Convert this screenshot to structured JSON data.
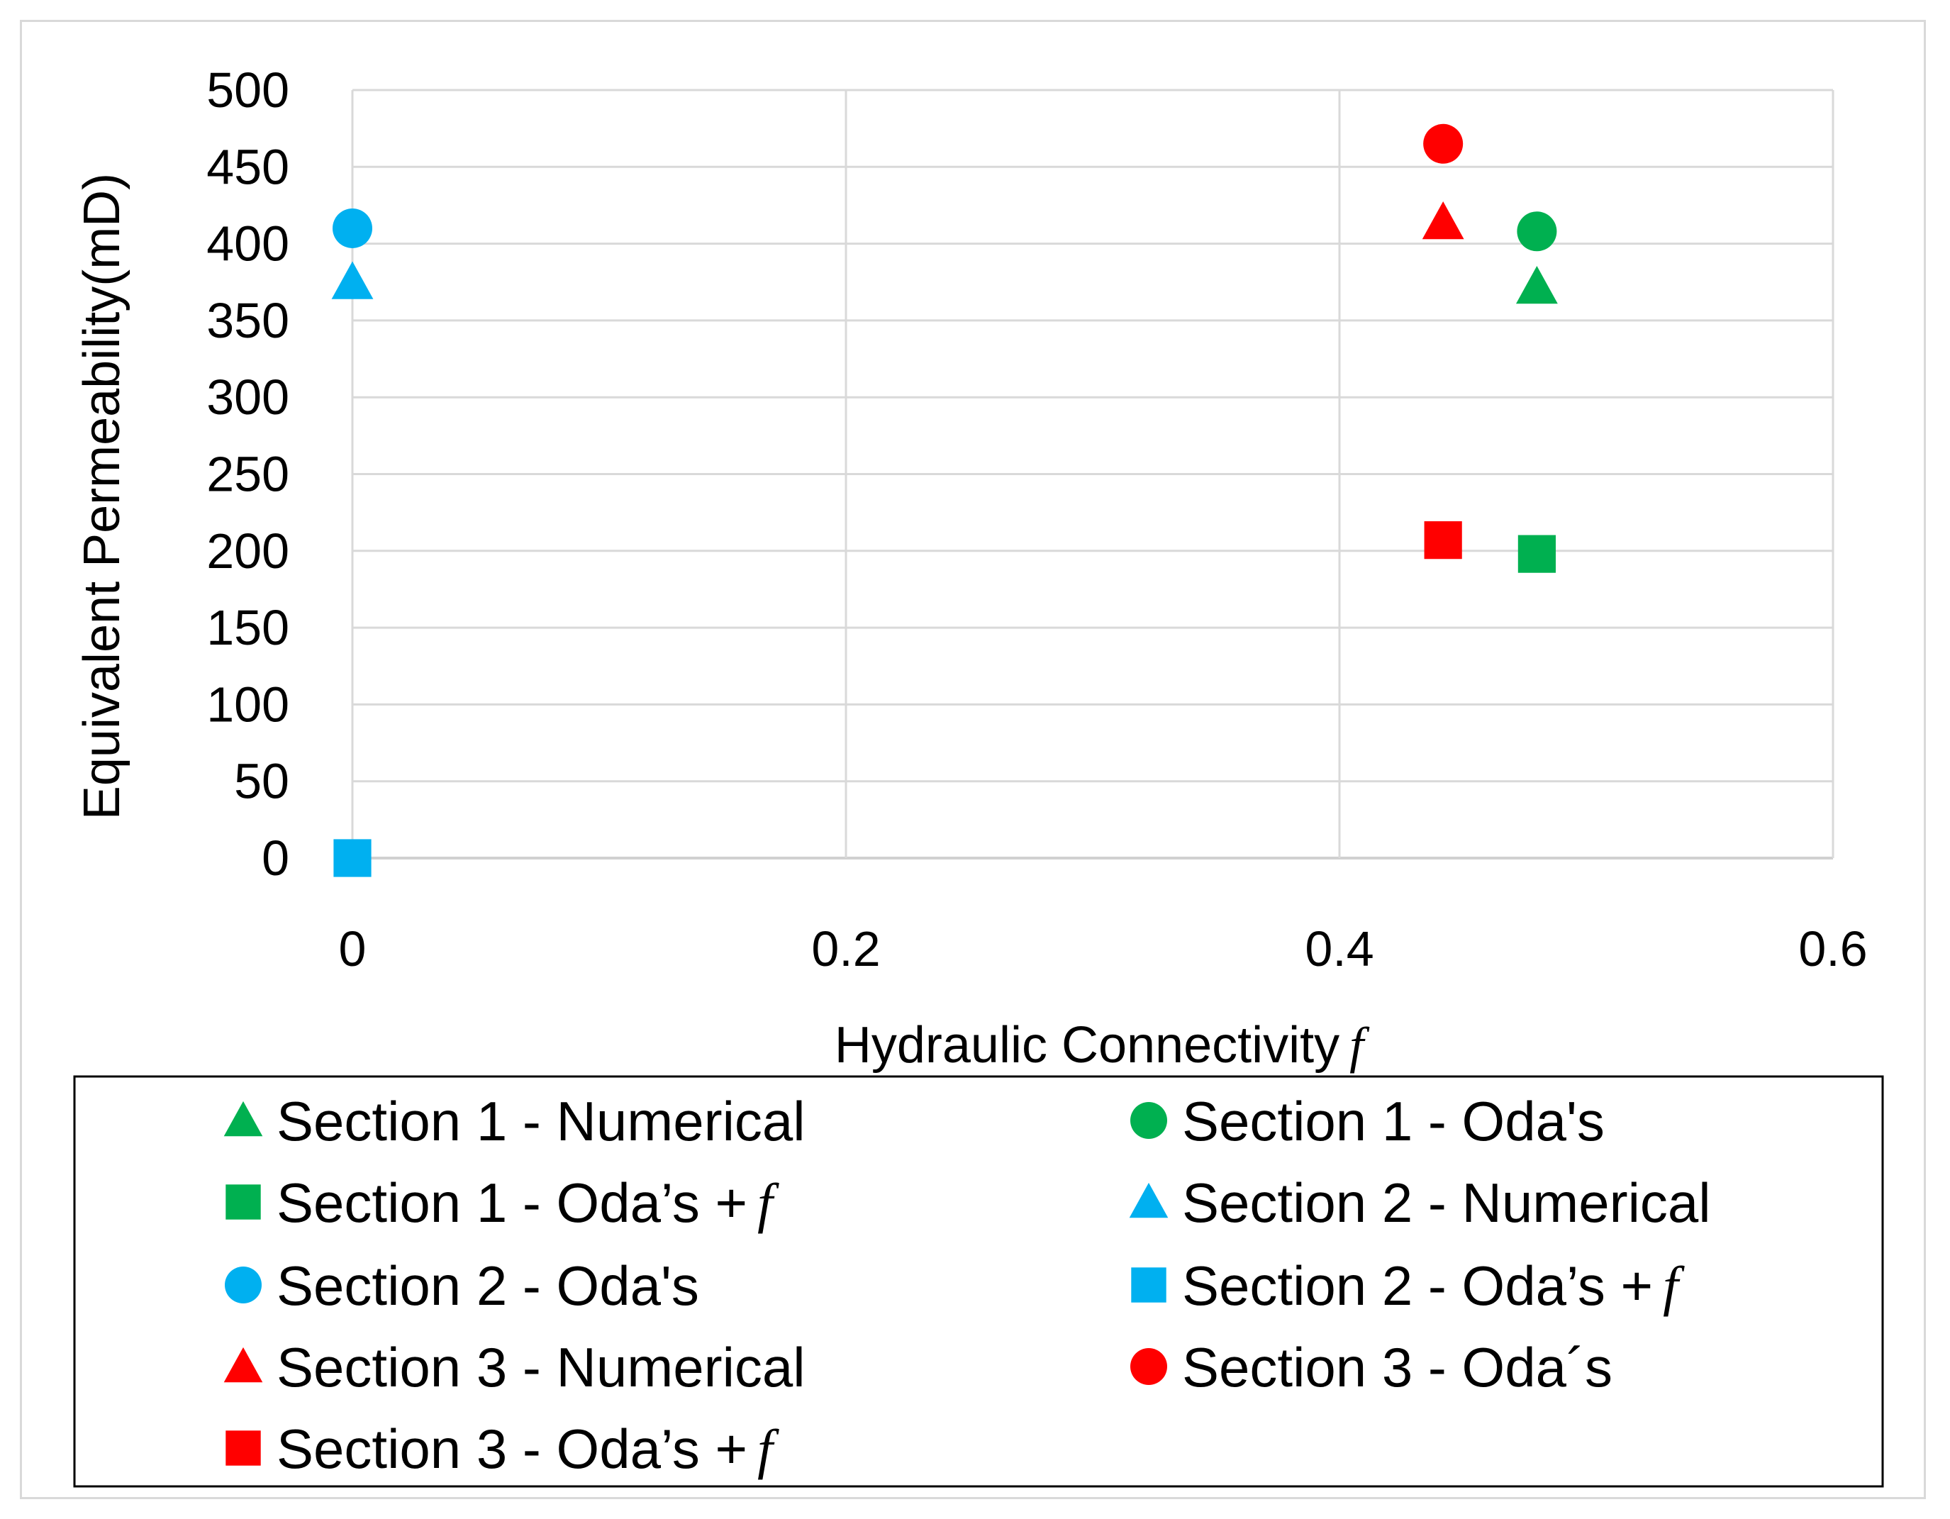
{
  "chart_data": {
    "type": "scatter",
    "title": "",
    "xlabel": "Hydraulic Connectivity",
    "xlabel_symbol": "f",
    "ylabel": "Equivalent Permeability(mD)",
    "xlim": [
      0,
      0.6
    ],
    "ylim": [
      0,
      500
    ],
    "x_ticks": [
      "0",
      "0.2",
      "0.4",
      "0.6"
    ],
    "y_ticks": [
      "0",
      "50",
      "100",
      "150",
      "200",
      "250",
      "300",
      "350",
      "400",
      "450",
      "500"
    ],
    "grid": true,
    "legend_position": "bottom",
    "series": [
      {
        "name": "Section 1 - Numerical",
        "name_suffix": "",
        "marker": "triangle",
        "color": "#00b050",
        "points": [
          {
            "x": 0.48,
            "y": 372
          }
        ]
      },
      {
        "name": "Section 1 - Oda's",
        "name_suffix": "",
        "marker": "circle",
        "color": "#00b050",
        "points": [
          {
            "x": 0.48,
            "y": 408
          }
        ]
      },
      {
        "name": "Section 1 - Oda’s +",
        "name_suffix": "f",
        "marker": "square",
        "color": "#00b050",
        "points": [
          {
            "x": 0.48,
            "y": 198
          }
        ]
      },
      {
        "name": "Section 2 - Numerical",
        "name_suffix": "",
        "marker": "triangle",
        "color": "#00b0f0",
        "points": [
          {
            "x": 0.0,
            "y": 375
          }
        ]
      },
      {
        "name": "Section 2 - Oda's",
        "name_suffix": "",
        "marker": "circle",
        "color": "#00b0f0",
        "points": [
          {
            "x": 0.0,
            "y": 410
          }
        ]
      },
      {
        "name": "Section 2 - Oda’s +",
        "name_suffix": "f",
        "marker": "square",
        "color": "#00b0f0",
        "points": [
          {
            "x": 0.0,
            "y": 0
          }
        ]
      },
      {
        "name": "Section 3 - Numerical",
        "name_suffix": "",
        "marker": "triangle",
        "color": "#ff0000",
        "points": [
          {
            "x": 0.442,
            "y": 414
          }
        ]
      },
      {
        "name": "Section 3 - Oda´s",
        "name_suffix": "",
        "marker": "circle",
        "color": "#ff0000",
        "points": [
          {
            "x": 0.442,
            "y": 465
          }
        ]
      },
      {
        "name": "Section 3 - Oda’s +",
        "name_suffix": "f",
        "marker": "square",
        "color": "#ff0000",
        "points": [
          {
            "x": 0.442,
            "y": 207
          }
        ]
      }
    ]
  }
}
